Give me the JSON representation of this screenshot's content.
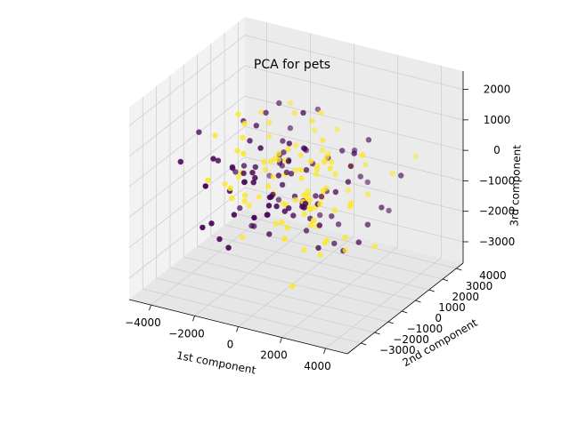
{
  "chart_data": {
    "type": "scatter",
    "projection": "3d",
    "title": "PCA for pets",
    "xlabel": "1st component",
    "ylabel": "2nd component",
    "zlabel": "3rd component",
    "xlim": [
      -5000,
      5000
    ],
    "ylim": [
      -4000,
      4500
    ],
    "zlim": [
      -3700,
      2600
    ],
    "xticks": [
      -4000,
      -2000,
      0,
      2000,
      4000
    ],
    "yticks": [
      -3000,
      -2000,
      -1000,
      0,
      1000,
      2000,
      3000,
      4000
    ],
    "zticks": [
      -3000,
      -2000,
      -1000,
      0,
      1000,
      2000
    ],
    "colormap": "viridis",
    "class_colors": [
      "#440154",
      "#fde725"
    ],
    "grid": true,
    "legend": "none",
    "point_count": 200
  }
}
